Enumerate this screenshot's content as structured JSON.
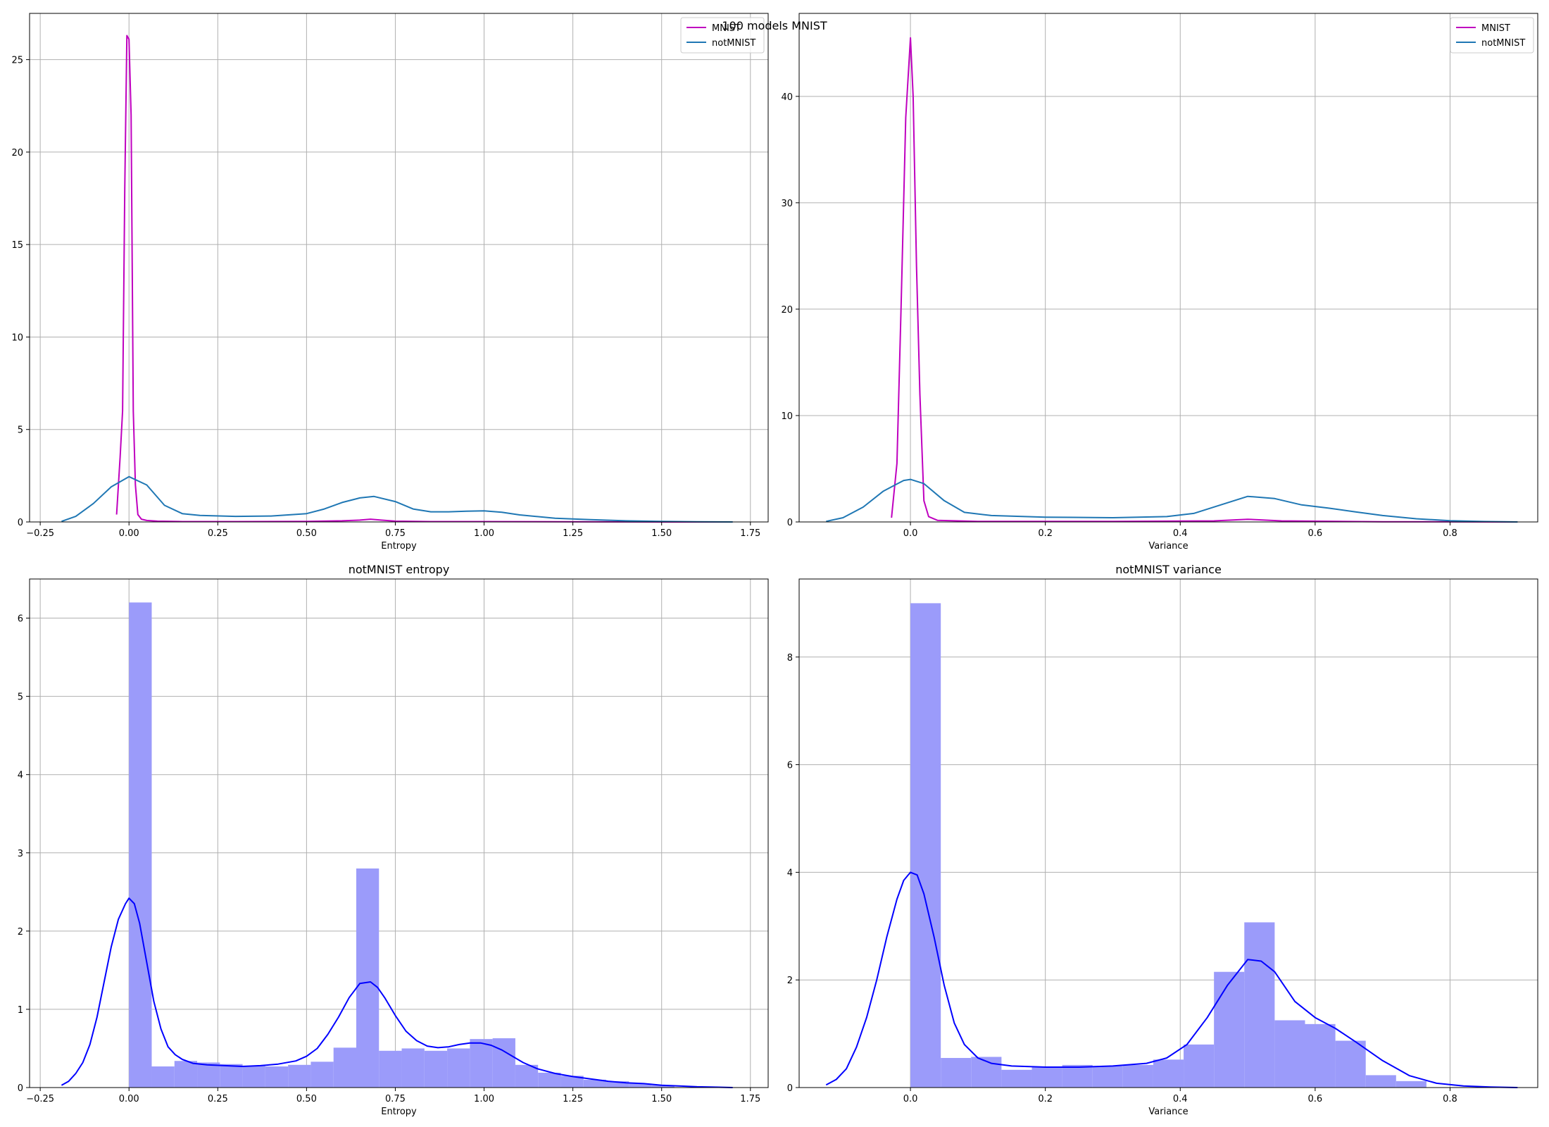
{
  "figure": {
    "suptitle": "100 models MNIST"
  },
  "chart_data": [
    {
      "type": "line",
      "title": "",
      "xlabel": "Entropy",
      "ylabel": "",
      "xlim": [
        -0.28,
        1.8
      ],
      "ylim": [
        0,
        27.5
      ],
      "xticks": [
        -0.25,
        0,
        0.25,
        0.5,
        0.75,
        1.0,
        1.25,
        1.5,
        1.75
      ],
      "xticklabels": [
        "−0.25",
        "0.00",
        "0.25",
        "0.50",
        "0.75",
        "1.00",
        "1.25",
        "1.50",
        "1.75"
      ],
      "yticks": [
        0,
        5,
        10,
        15,
        20,
        25
      ],
      "yticklabels": [
        "0",
        "5",
        "10",
        "15",
        "20",
        "25"
      ],
      "grid": true,
      "legend": "top-right",
      "series": [
        {
          "name": "MNIST",
          "color": "#bf00bf",
          "x": [
            -0.035,
            -0.025,
            -0.018,
            -0.012,
            -0.006,
            0.0,
            0.006,
            0.012,
            0.018,
            0.025,
            0.035,
            0.05,
            0.08,
            0.15,
            0.3,
            0.5,
            0.6,
            0.65,
            0.68,
            0.71,
            0.75,
            0.85,
            1.0,
            1.25,
            1.5,
            1.7
          ],
          "y": [
            0.4,
            3.5,
            6.0,
            18.0,
            26.3,
            26.1,
            22.0,
            6.0,
            2.0,
            0.4,
            0.15,
            0.08,
            0.04,
            0.02,
            0.02,
            0.03,
            0.06,
            0.1,
            0.15,
            0.1,
            0.04,
            0.02,
            0.02,
            0.01,
            0.0,
            0.0
          ]
        },
        {
          "name": "notMNIST",
          "color": "#1f77b4",
          "x": [
            -0.19,
            -0.15,
            -0.1,
            -0.05,
            0.0,
            0.05,
            0.1,
            0.15,
            0.2,
            0.3,
            0.4,
            0.5,
            0.55,
            0.6,
            0.65,
            0.69,
            0.75,
            0.8,
            0.85,
            0.9,
            0.95,
            1.0,
            1.05,
            1.1,
            1.2,
            1.3,
            1.4,
            1.5,
            1.6,
            1.7
          ],
          "y": [
            0.03,
            0.3,
            1.0,
            1.9,
            2.45,
            2.0,
            0.9,
            0.45,
            0.35,
            0.3,
            0.32,
            0.45,
            0.7,
            1.05,
            1.3,
            1.38,
            1.1,
            0.7,
            0.55,
            0.55,
            0.58,
            0.6,
            0.52,
            0.38,
            0.2,
            0.12,
            0.06,
            0.03,
            0.01,
            0.0
          ]
        }
      ]
    },
    {
      "type": "line",
      "title": "",
      "xlabel": "Variance",
      "ylabel": "",
      "xlim": [
        -0.165,
        0.93
      ],
      "ylim": [
        0,
        47.8
      ],
      "xticks": [
        0,
        0.2,
        0.4,
        0.6,
        0.8
      ],
      "xticklabels": [
        "0.0",
        "0.2",
        "0.4",
        "0.6",
        "0.8"
      ],
      "yticks": [
        0,
        10,
        20,
        30,
        40
      ],
      "yticklabels": [
        "0",
        "10",
        "20",
        "30",
        "40"
      ],
      "grid": true,
      "legend": "top-right",
      "series": [
        {
          "name": "MNIST",
          "color": "#bf00bf",
          "x": [
            -0.028,
            -0.02,
            -0.014,
            -0.007,
            0.0,
            0.004,
            0.009,
            0.014,
            0.02,
            0.027,
            0.04,
            0.1,
            0.3,
            0.45,
            0.5,
            0.55,
            0.7,
            0.9
          ],
          "y": [
            0.4,
            5.5,
            20.0,
            38.0,
            45.5,
            40.0,
            24.0,
            12.0,
            2.0,
            0.5,
            0.15,
            0.05,
            0.05,
            0.1,
            0.25,
            0.1,
            0.02,
            0.0
          ]
        },
        {
          "name": "notMNIST",
          "color": "#1f77b4",
          "x": [
            -0.125,
            -0.1,
            -0.07,
            -0.04,
            -0.01,
            0.0,
            0.02,
            0.05,
            0.08,
            0.12,
            0.2,
            0.3,
            0.38,
            0.42,
            0.46,
            0.5,
            0.54,
            0.58,
            0.62,
            0.66,
            0.7,
            0.75,
            0.8,
            0.85,
            0.9
          ],
          "y": [
            0.05,
            0.4,
            1.4,
            2.9,
            3.9,
            4.0,
            3.6,
            2.0,
            0.9,
            0.6,
            0.45,
            0.4,
            0.5,
            0.8,
            1.6,
            2.4,
            2.2,
            1.6,
            1.3,
            0.95,
            0.6,
            0.3,
            0.12,
            0.04,
            0.0
          ]
        }
      ]
    },
    {
      "type": "bar",
      "title": "notMNIST entropy",
      "xlabel": "Entropy",
      "ylabel": "",
      "xlim": [
        -0.28,
        1.8
      ],
      "ylim": [
        0,
        6.5
      ],
      "xticks": [
        -0.25,
        0,
        0.25,
        0.5,
        0.75,
        1.0,
        1.25,
        1.5,
        1.75
      ],
      "xticklabels": [
        "−0.25",
        "0.00",
        "0.25",
        "0.50",
        "0.75",
        "1.00",
        "1.25",
        "1.50",
        "1.75"
      ],
      "yticks": [
        0,
        1,
        2,
        3,
        4,
        5,
        6
      ],
      "yticklabels": [
        "0",
        "1",
        "2",
        "3",
        "4",
        "5",
        "6"
      ],
      "grid": true,
      "bin_edges": [
        0.0,
        0.064,
        0.128,
        0.192,
        0.256,
        0.32,
        0.384,
        0.448,
        0.512,
        0.576,
        0.64,
        0.704,
        0.768,
        0.832,
        0.896,
        0.96,
        1.024,
        1.088,
        1.152,
        1.216,
        1.28,
        1.344,
        1.408,
        1.472,
        1.536
      ],
      "values": [
        6.2,
        0.27,
        0.34,
        0.32,
        0.3,
        0.28,
        0.27,
        0.29,
        0.33,
        0.51,
        2.8,
        0.47,
        0.5,
        0.47,
        0.5,
        0.62,
        0.63,
        0.29,
        0.19,
        0.15,
        0.1,
        0.08,
        0.05,
        0.03
      ],
      "bar_color": "#9b9bfa",
      "kde": {
        "color": "#0000ff",
        "x": [
          -0.19,
          -0.17,
          -0.15,
          -0.13,
          -0.11,
          -0.09,
          -0.07,
          -0.05,
          -0.03,
          -0.01,
          0.0,
          0.015,
          0.03,
          0.05,
          0.07,
          0.09,
          0.11,
          0.13,
          0.15,
          0.18,
          0.22,
          0.27,
          0.32,
          0.37,
          0.42,
          0.47,
          0.5,
          0.53,
          0.56,
          0.59,
          0.62,
          0.65,
          0.68,
          0.7,
          0.72,
          0.75,
          0.78,
          0.81,
          0.84,
          0.87,
          0.9,
          0.93,
          0.96,
          0.99,
          1.02,
          1.05,
          1.08,
          1.11,
          1.15,
          1.2,
          1.25,
          1.3,
          1.35,
          1.4,
          1.45,
          1.5,
          1.55,
          1.6,
          1.65,
          1.7
        ],
        "y": [
          0.03,
          0.08,
          0.18,
          0.32,
          0.55,
          0.9,
          1.35,
          1.8,
          2.15,
          2.35,
          2.42,
          2.35,
          2.1,
          1.6,
          1.1,
          0.75,
          0.52,
          0.42,
          0.36,
          0.31,
          0.29,
          0.28,
          0.27,
          0.28,
          0.3,
          0.34,
          0.4,
          0.5,
          0.68,
          0.9,
          1.15,
          1.33,
          1.35,
          1.28,
          1.15,
          0.92,
          0.72,
          0.6,
          0.53,
          0.51,
          0.52,
          0.55,
          0.57,
          0.57,
          0.54,
          0.48,
          0.4,
          0.32,
          0.24,
          0.18,
          0.14,
          0.11,
          0.08,
          0.06,
          0.05,
          0.03,
          0.02,
          0.01,
          0.005,
          0.0
        ]
      }
    },
    {
      "type": "bar",
      "title": "notMNIST variance",
      "xlabel": "Variance",
      "ylabel": "",
      "xlim": [
        -0.165,
        0.93
      ],
      "ylim": [
        0,
        9.45
      ],
      "xticks": [
        0,
        0.2,
        0.4,
        0.6,
        0.8
      ],
      "xticklabels": [
        "0.0",
        "0.2",
        "0.4",
        "0.6",
        "0.8"
      ],
      "yticks": [
        0,
        2,
        4,
        6,
        8
      ],
      "yticklabels": [
        "0",
        "2",
        "4",
        "6",
        "8"
      ],
      "grid": true,
      "bin_edges": [
        0.0,
        0.045,
        0.09,
        0.135,
        0.18,
        0.225,
        0.27,
        0.315,
        0.36,
        0.405,
        0.45,
        0.495,
        0.54,
        0.585,
        0.63,
        0.675,
        0.72,
        0.765
      ],
      "values": [
        9.0,
        0.55,
        0.57,
        0.33,
        0.38,
        0.42,
        0.4,
        0.42,
        0.52,
        0.8,
        2.15,
        3.07,
        1.25,
        1.18,
        0.87,
        0.23,
        0.12
      ],
      "bar_color": "#9b9bfa",
      "kde": {
        "color": "#0000ff",
        "x": [
          -0.125,
          -0.11,
          -0.095,
          -0.08,
          -0.065,
          -0.05,
          -0.035,
          -0.02,
          -0.01,
          0.0,
          0.01,
          0.02,
          0.035,
          0.05,
          0.065,
          0.08,
          0.1,
          0.12,
          0.15,
          0.2,
          0.25,
          0.3,
          0.35,
          0.38,
          0.41,
          0.44,
          0.47,
          0.5,
          0.52,
          0.54,
          0.57,
          0.6,
          0.63,
          0.66,
          0.7,
          0.74,
          0.78,
          0.82,
          0.86,
          0.9
        ],
        "y": [
          0.05,
          0.15,
          0.35,
          0.75,
          1.3,
          2.0,
          2.8,
          3.5,
          3.85,
          4.0,
          3.95,
          3.6,
          2.8,
          1.9,
          1.2,
          0.8,
          0.55,
          0.45,
          0.4,
          0.38,
          0.38,
          0.4,
          0.45,
          0.55,
          0.8,
          1.3,
          1.9,
          2.38,
          2.35,
          2.15,
          1.6,
          1.3,
          1.1,
          0.85,
          0.5,
          0.22,
          0.08,
          0.03,
          0.01,
          0.0
        ]
      }
    }
  ]
}
